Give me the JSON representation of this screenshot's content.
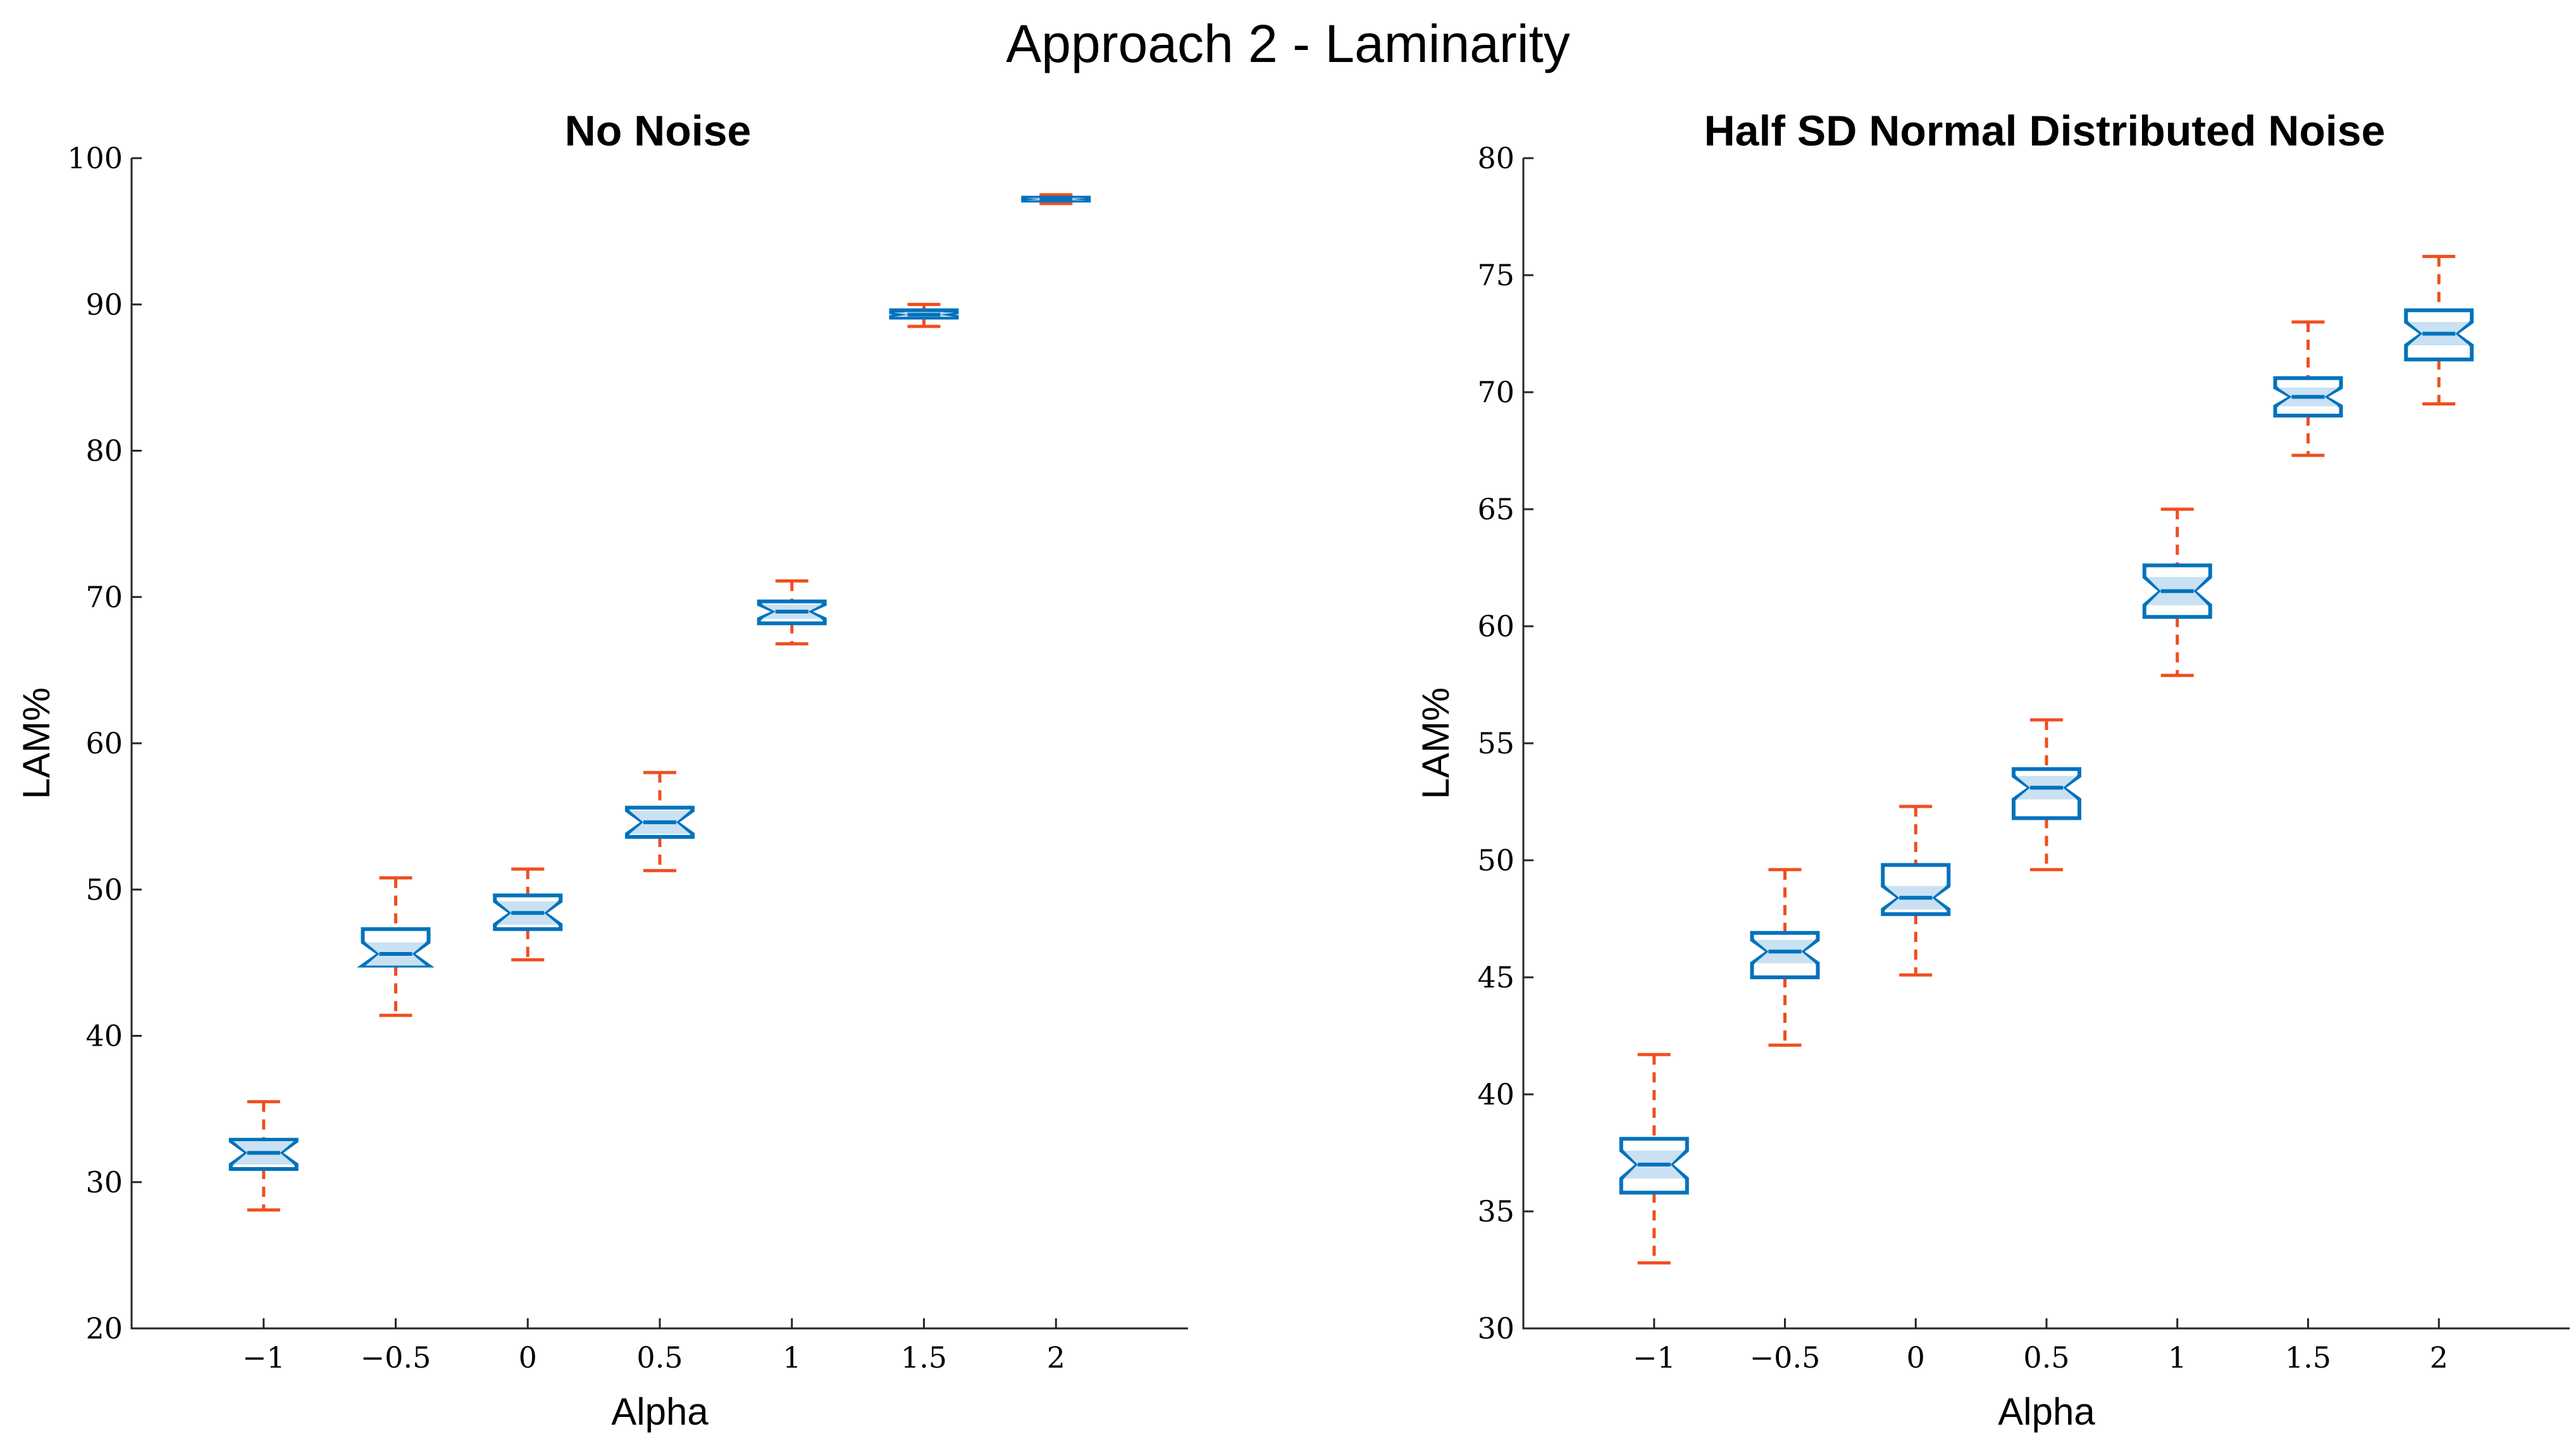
{
  "figure_title": "Approach 2 - Laminarity",
  "colors": {
    "box": "#0072BD",
    "notch_fill": "#c9e1f2",
    "whisker": "#f04e1f",
    "axis": "#262626"
  },
  "chart_data": [
    {
      "type": "box",
      "title": "No Noise",
      "xlabel": "Alpha",
      "ylabel": "LAM%",
      "categories": [
        "−1",
        "−0.5",
        "0",
        "0.5",
        "1",
        "1.5",
        "2"
      ],
      "x": [
        -1,
        -0.5,
        0,
        0.5,
        1,
        1.5,
        2
      ],
      "xlim": [
        -1.5,
        2.5
      ],
      "ylim": [
        20,
        100
      ],
      "yticks": [
        20,
        30,
        40,
        50,
        60,
        70,
        80,
        90,
        100
      ],
      "boxes": [
        {
          "whisker_low": 28.1,
          "q1": 30.9,
          "median": 32.0,
          "q3": 32.9,
          "whisker_high": 35.5,
          "notch": 0.8
        },
        {
          "whisker_low": 41.4,
          "q1": 44.8,
          "median": 45.6,
          "q3": 47.3,
          "whisker_high": 50.8,
          "notch": 0.8
        },
        {
          "whisker_low": 45.2,
          "q1": 47.3,
          "median": 48.4,
          "q3": 49.6,
          "whisker_high": 51.4,
          "notch": 0.8
        },
        {
          "whisker_low": 51.3,
          "q1": 53.6,
          "median": 54.6,
          "q3": 55.6,
          "whisker_high": 58.0,
          "notch": 0.8
        },
        {
          "whisker_low": 66.8,
          "q1": 68.2,
          "median": 69.0,
          "q3": 69.7,
          "whisker_high": 71.1,
          "notch": 0.5
        },
        {
          "whisker_low": 88.5,
          "q1": 89.1,
          "median": 89.3,
          "q3": 89.6,
          "whisker_high": 90.0,
          "notch": 0.15
        },
        {
          "whisker_low": 96.9,
          "q1": 97.1,
          "median": 97.2,
          "q3": 97.3,
          "whisker_high": 97.5,
          "notch": 0.08
        }
      ]
    },
    {
      "type": "box",
      "title": "Half SD Normal Distributed Noise",
      "xlabel": "Alpha",
      "ylabel": "LAM%",
      "categories": [
        "−1",
        "−0.5",
        "0",
        "0.5",
        "1",
        "1.5",
        "2"
      ],
      "x": [
        -1,
        -0.5,
        0,
        0.5,
        1,
        1.5,
        2
      ],
      "xlim": [
        -1.5,
        2.5
      ],
      "ylim": [
        30,
        80
      ],
      "yticks": [
        30,
        35,
        40,
        45,
        50,
        55,
        60,
        65,
        70,
        75,
        80
      ],
      "boxes": [
        {
          "whisker_low": 32.8,
          "q1": 35.8,
          "median": 37.0,
          "q3": 38.1,
          "whisker_high": 41.7,
          "notch": 0.6
        },
        {
          "whisker_low": 42.1,
          "q1": 45.0,
          "median": 46.1,
          "q3": 46.9,
          "whisker_high": 49.6,
          "notch": 0.5
        },
        {
          "whisker_low": 45.1,
          "q1": 47.7,
          "median": 48.4,
          "q3": 49.8,
          "whisker_high": 52.3,
          "notch": 0.5
        },
        {
          "whisker_low": 49.6,
          "q1": 51.8,
          "median": 53.1,
          "q3": 53.9,
          "whisker_high": 56.0,
          "notch": 0.5
        },
        {
          "whisker_low": 57.9,
          "q1": 60.4,
          "median": 61.5,
          "q3": 62.6,
          "whisker_high": 65.0,
          "notch": 0.6
        },
        {
          "whisker_low": 67.3,
          "q1": 69.0,
          "median": 69.8,
          "q3": 70.6,
          "whisker_high": 73.0,
          "notch": 0.4
        },
        {
          "whisker_low": 69.5,
          "q1": 71.4,
          "median": 72.5,
          "q3": 73.5,
          "whisker_high": 75.8,
          "notch": 0.5
        }
      ]
    }
  ]
}
